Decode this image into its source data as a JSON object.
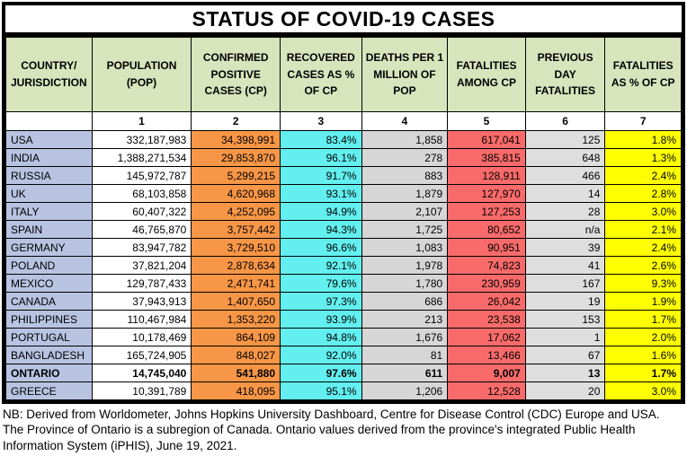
{
  "title": "STATUS OF COVID-19 CASES",
  "colors": {
    "header_bg": "#D7E4BC",
    "country_bg": "#B7C3E1",
    "population_bg": "#FFFFFF",
    "confirmed_bg": "#F79646",
    "recovered_bg": "#63EFEF",
    "deaths_bg": "#D6D6D6",
    "fatalities_bg": "#F96B6B",
    "prevday_bg": "#DEDEDE",
    "fatalpct_bg": "#FFFF00",
    "border": "#000000"
  },
  "columns": [
    {
      "key": "country",
      "label": "COUNTRY/ JURISDICTION",
      "number": ""
    },
    {
      "key": "population",
      "label": "POPULATION (POP)",
      "number": "1"
    },
    {
      "key": "confirmed",
      "label": "CONFIRMED POSITIVE CASES (CP)",
      "number": "2"
    },
    {
      "key": "recovered",
      "label": "RECOVERED CASES AS % OF CP",
      "number": "3"
    },
    {
      "key": "deaths",
      "label": "DEATHS PER 1 MILLION OF POP",
      "number": "4"
    },
    {
      "key": "fatalities",
      "label": "FATALITIES AMONG CP",
      "number": "5"
    },
    {
      "key": "prevday",
      "label": "PREVIOUS DAY FATALITIES",
      "number": "6"
    },
    {
      "key": "fatalpct",
      "label": "FATALITIES AS % OF CP",
      "number": "7"
    }
  ],
  "rows": [
    {
      "name": "USA",
      "bold": false,
      "cells": [
        "332,187,983",
        "34,398,991",
        "83.4%",
        "1,858",
        "617,041",
        "125",
        "1.8%"
      ]
    },
    {
      "name": "INDIA",
      "bold": false,
      "cells": [
        "1,388,271,534",
        "29,853,870",
        "96.1%",
        "278",
        "385,815",
        "648",
        "1.3%"
      ]
    },
    {
      "name": "RUSSIA",
      "bold": false,
      "cells": [
        "145,972,787",
        "5,299,215",
        "91.7%",
        "883",
        "128,911",
        "466",
        "2.4%"
      ]
    },
    {
      "name": "UK",
      "bold": false,
      "cells": [
        "68,103,858",
        "4,620,968",
        "93.1%",
        "1,879",
        "127,970",
        "14",
        "2.8%"
      ]
    },
    {
      "name": "ITALY",
      "bold": false,
      "cells": [
        "60,407,322",
        "4,252,095",
        "94.9%",
        "2,107",
        "127,253",
        "28",
        "3.0%"
      ]
    },
    {
      "name": "SPAIN",
      "bold": false,
      "cells": [
        "46,765,870",
        "3,757,442",
        "94.3%",
        "1,725",
        "80,652",
        "n/a",
        "2.1%"
      ]
    },
    {
      "name": "GERMANY",
      "bold": false,
      "cells": [
        "83,947,782",
        "3,729,510",
        "96.6%",
        "1,083",
        "90,951",
        "39",
        "2.4%"
      ]
    },
    {
      "name": "POLAND",
      "bold": false,
      "cells": [
        "37,821,204",
        "2,878,634",
        "92.1%",
        "1,978",
        "74,823",
        "41",
        "2.6%"
      ]
    },
    {
      "name": "MEXICO",
      "bold": false,
      "cells": [
        "129,787,433",
        "2,471,741",
        "79.6%",
        "1,780",
        "230,959",
        "167",
        "9.3%"
      ]
    },
    {
      "name": "CANADA",
      "bold": false,
      "cells": [
        "37,943,913",
        "1,407,650",
        "97.3%",
        "686",
        "26,042",
        "19",
        "1.9%"
      ]
    },
    {
      "name": "PHILIPPINES",
      "bold": false,
      "cells": [
        "110,467,984",
        "1,353,220",
        "93.9%",
        "213",
        "23,538",
        "153",
        "1.7%"
      ]
    },
    {
      "name": "PORTUGAL",
      "bold": false,
      "cells": [
        "10,178,469",
        "864,109",
        "94.8%",
        "1,676",
        "17,062",
        "1",
        "2.0%"
      ]
    },
    {
      "name": "BANGLADESH",
      "bold": false,
      "cells": [
        "165,724,905",
        "848,027",
        "92.0%",
        "81",
        "13,466",
        "67",
        "1.6%"
      ]
    },
    {
      "name": "ONTARIO",
      "bold": true,
      "cells": [
        "14,745,040",
        "541,880",
        "97.6%",
        "611",
        "9,007",
        "13",
        "1.7%"
      ]
    },
    {
      "name": "GREECE",
      "bold": false,
      "cells": [
        "10,391,789",
        "418,095",
        "95.1%",
        "1,206",
        "12,528",
        "20",
        "3.0%"
      ]
    }
  ],
  "footer": "NB: Derived from Worldometer, Johns Hopkins University Dashboard, Centre for Disease Control (CDC) Europe and USA. The Province of Ontario is a subregion of Canada. Ontario values derived from the province's integrated Public Health Information System (iPHIS), June 19, 2021."
}
